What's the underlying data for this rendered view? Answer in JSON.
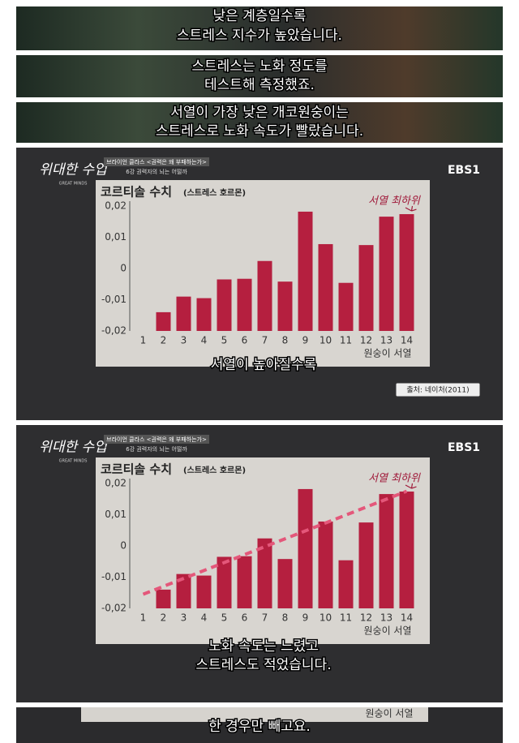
{
  "captions": [
    [
      "낮은 계층일수록",
      "스트레스 지수가 높았습니다."
    ],
    [
      "스트레스는 노화 정도를",
      "테스트해 측정했죠."
    ],
    [
      "서열이 가장 낮은 개코원숭이는",
      "스트레스로 노화 속도가 빨랐습니다."
    ]
  ],
  "chart_data": [
    {
      "type": "bar",
      "title": "코르티솔 수치",
      "title_note": "(스트레스 호르몬)",
      "program": "위대한 수업",
      "program_en": "GREAT MINDS",
      "lecture": "브라이언 클라스 <권력은 왜 부패하는가>",
      "episode": "6강 권력자의 뇌는 어떨까",
      "channel": "EBS1",
      "annotation": "서열 최하위",
      "x_label": "원숭이 서열",
      "caption": [
        "서열이 높아질수록"
      ],
      "source": "출처: 네이처(2011)",
      "categories": [
        "1",
        "2",
        "3",
        "4",
        "5",
        "6",
        "7",
        "8",
        "9",
        "10",
        "11",
        "12",
        "13",
        "14"
      ],
      "values": [
        null,
        -0.014,
        -0.009,
        -0.0095,
        -0.0035,
        -0.0033,
        0.0024,
        -0.0042,
        0.0182,
        0.0078,
        -0.0046,
        0.0075,
        0.0166,
        0.0174
      ],
      "color": "#b51f3f",
      "ylim": [
        -0.02,
        0.02
      ],
      "yticks": [
        {
          "value": 0.02,
          "label": "0,02"
        },
        {
          "value": 0.01,
          "label": "0,01"
        },
        0,
        {
          "value": -0.01,
          "label": "-0,01"
        },
        {
          "value": -0.02,
          "label": "-0,02"
        }
      ],
      "grid": false
    },
    {
      "type": "bar",
      "title": "코르티솔 수치",
      "title_note": "(스트레스 호르몬)",
      "program": "위대한 수업",
      "program_en": "GREAT MINDS",
      "lecture": "브라이언 클라스 <권력은 왜 부패하는가>",
      "episode": "6강 권력자의 뇌는 어떨까",
      "channel": "EBS1",
      "annotation": "서열 최하위",
      "x_label": "원숭이 서열",
      "caption": [
        "노화 속도는 느렸고",
        "스트레스도 적었습니다."
      ],
      "categories": [
        "1",
        "2",
        "3",
        "4",
        "5",
        "6",
        "7",
        "8",
        "9",
        "10",
        "11",
        "12",
        "13",
        "14"
      ],
      "values": [
        null,
        -0.014,
        -0.009,
        -0.0095,
        -0.0035,
        -0.0033,
        0.0024,
        -0.0042,
        0.0182,
        0.0078,
        -0.0046,
        0.0075,
        0.0166,
        0.0174
      ],
      "color": "#b51f3f",
      "ylim": [
        -0.02,
        0.02
      ],
      "yticks": [
        {
          "value": 0.02,
          "label": "0,02"
        },
        {
          "value": 0.01,
          "label": "0,01"
        },
        0,
        {
          "value": -0.01,
          "label": "-0,01"
        },
        {
          "value": -0.02,
          "label": "-0,02"
        }
      ],
      "grid": false,
      "trendline": {
        "values": [
          -0.0155,
          0.0175
        ],
        "color": "#e4577a"
      }
    }
  ],
  "footer": {
    "axis_fragment": "원숭이 서열",
    "caption": "한 경우만 빼고요."
  }
}
